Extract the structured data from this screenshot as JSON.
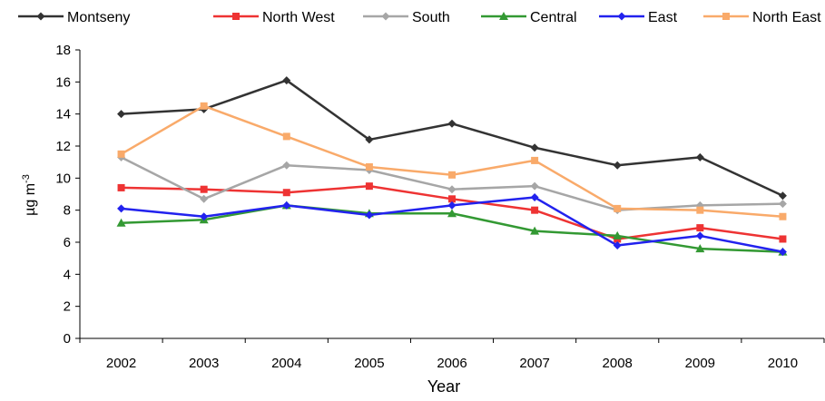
{
  "chart_data": {
    "type": "line",
    "title": "",
    "xlabel": "Year",
    "ylabel_main": "µg m",
    "ylabel_sup": "-3",
    "categories": [
      "2002",
      "2003",
      "2004",
      "2005",
      "2006",
      "2007",
      "2008",
      "2009",
      "2010"
    ],
    "ylim": [
      0,
      18
    ],
    "yticks": [
      0,
      2,
      4,
      6,
      8,
      10,
      12,
      14,
      16,
      18
    ],
    "legend_position": "top",
    "series": [
      {
        "name": "Montseny",
        "color": "#333333",
        "marker": "diamond",
        "values": [
          14.0,
          14.3,
          16.1,
          12.4,
          13.4,
          11.9,
          10.8,
          11.3,
          8.9
        ]
      },
      {
        "name": "North West",
        "color": "#ee3333",
        "marker": "square",
        "values": [
          9.4,
          9.3,
          9.1,
          9.5,
          8.7,
          8.0,
          6.2,
          6.9,
          6.2
        ]
      },
      {
        "name": "South",
        "color": "#a6a6a6",
        "marker": "diamond",
        "values": [
          11.3,
          8.7,
          10.8,
          10.5,
          9.3,
          9.5,
          8.0,
          8.3,
          8.4
        ]
      },
      {
        "name": "Central",
        "color": "#339933",
        "marker": "triangle",
        "values": [
          7.2,
          7.4,
          8.3,
          7.8,
          7.8,
          6.7,
          6.4,
          5.6,
          5.4
        ]
      },
      {
        "name": "East",
        "color": "#2222ee",
        "marker": "diamond",
        "values": [
          8.1,
          7.6,
          8.3,
          7.7,
          8.3,
          8.8,
          5.8,
          6.4,
          5.4
        ]
      },
      {
        "name": "North East",
        "color": "#f9aa6a",
        "marker": "square",
        "values": [
          11.5,
          14.5,
          12.6,
          10.7,
          10.2,
          11.1,
          8.1,
          8.0,
          7.6
        ]
      }
    ]
  }
}
